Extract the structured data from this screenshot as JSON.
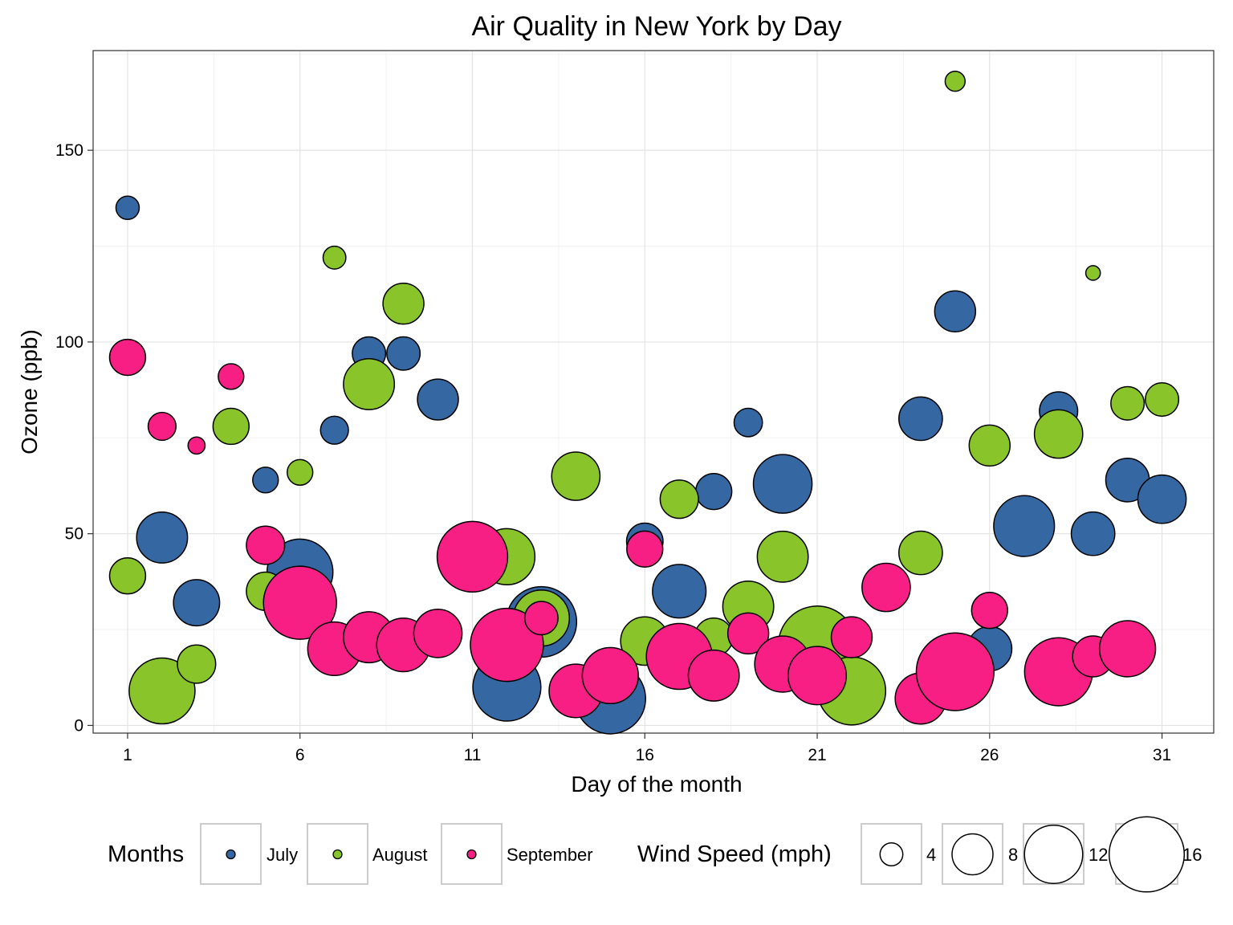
{
  "chart_data": {
    "type": "scatter",
    "title": "Air Quality in New York by Day",
    "xlabel": "Day of the month",
    "ylabel": "Ozone (ppb)",
    "xlim": [
      0,
      32.5
    ],
    "ylim": [
      -2,
      176
    ],
    "x_ticks": [
      1,
      6,
      11,
      16,
      21,
      26,
      31
    ],
    "y_ticks": [
      0,
      50,
      100,
      150
    ],
    "grid": true,
    "size_variable": "Wind Speed (mph)",
    "series": [
      {
        "name": "July",
        "color": "#3567A3",
        "points": [
          {
            "day": 1,
            "ozone": 135,
            "wind": 4.1
          },
          {
            "day": 2,
            "ozone": 49,
            "wind": 10.3
          },
          {
            "day": 3,
            "ozone": 32,
            "wind": 9.2
          },
          {
            "day": 5,
            "ozone": 64,
            "wind": 4.6
          },
          {
            "day": 6,
            "ozone": 40,
            "wind": 13.8
          },
          {
            "day": 7,
            "ozone": 77,
            "wind": 5.1
          },
          {
            "day": 8,
            "ozone": 97,
            "wind": 6.3
          },
          {
            "day": 9,
            "ozone": 97,
            "wind": 6.3
          },
          {
            "day": 10,
            "ozone": 85,
            "wind": 8.0
          },
          {
            "day": 12,
            "ozone": 10,
            "wind": 14.3
          },
          {
            "day": 13,
            "ozone": 27,
            "wind": 14.9
          },
          {
            "day": 15,
            "ozone": 7,
            "wind": 14.9
          },
          {
            "day": 16,
            "ozone": 48,
            "wind": 7.0
          },
          {
            "day": 17,
            "ozone": 35,
            "wind": 10.9
          },
          {
            "day": 18,
            "ozone": 61,
            "wind": 6.9
          },
          {
            "day": 19,
            "ozone": 79,
            "wind": 5.2
          },
          {
            "day": 20,
            "ozone": 63,
            "wind": 12.1
          },
          {
            "day": 24,
            "ozone": 80,
            "wind": 8.6
          },
          {
            "day": 25,
            "ozone": 108,
            "wind": 8.0
          },
          {
            "day": 26,
            "ozone": 20,
            "wind": 8.8
          },
          {
            "day": 27,
            "ozone": 52,
            "wind": 12.6
          },
          {
            "day": 28,
            "ozone": 82,
            "wind": 7.4
          },
          {
            "day": 29,
            "ozone": 50,
            "wind": 8.6
          },
          {
            "day": 30,
            "ozone": 64,
            "wind": 8.6
          },
          {
            "day": 31,
            "ozone": 59,
            "wind": 9.7
          }
        ]
      },
      {
        "name": "August",
        "color": "#88C42A",
        "points": [
          {
            "day": 1,
            "ozone": 39,
            "wind": 6.9
          },
          {
            "day": 2,
            "ozone": 9,
            "wind": 13.8
          },
          {
            "day": 3,
            "ozone": 16,
            "wind": 7.4
          },
          {
            "day": 4,
            "ozone": 78,
            "wind": 6.9
          },
          {
            "day": 5,
            "ozone": 35,
            "wind": 7.4
          },
          {
            "day": 6,
            "ozone": 66,
            "wind": 4.6
          },
          {
            "day": 7,
            "ozone": 122,
            "wind": 4.0
          },
          {
            "day": 8,
            "ozone": 89,
            "wind": 10.3
          },
          {
            "day": 9,
            "ozone": 110,
            "wind": 8.0
          },
          {
            "day": 12,
            "ozone": 44,
            "wind": 11.5
          },
          {
            "day": 13,
            "ozone": 28,
            "wind": 11.5
          },
          {
            "day": 14,
            "ozone": 65,
            "wind": 9.7
          },
          {
            "day": 16,
            "ozone": 22,
            "wind": 9.7
          },
          {
            "day": 17,
            "ozone": 59,
            "wind": 7.4
          },
          {
            "day": 18,
            "ozone": 23,
            "wind": 7.4
          },
          {
            "day": 19,
            "ozone": 31,
            "wind": 10.3
          },
          {
            "day": 20,
            "ozone": 44,
            "wind": 10.3
          },
          {
            "day": 21,
            "ozone": 21,
            "wind": 16.6
          },
          {
            "day": 22,
            "ozone": 9,
            "wind": 14.3
          },
          {
            "day": 24,
            "ozone": 45,
            "wind": 8.6
          },
          {
            "day": 25,
            "ozone": 168,
            "wind": 3.4
          },
          {
            "day": 26,
            "ozone": 73,
            "wind": 8.0
          },
          {
            "day": 28,
            "ozone": 76,
            "wind": 9.7
          },
          {
            "day": 29,
            "ozone": 118,
            "wind": 2.3
          },
          {
            "day": 30,
            "ozone": 84,
            "wind": 6.3
          },
          {
            "day": 31,
            "ozone": 85,
            "wind": 6.3
          }
        ]
      },
      {
        "name": "September",
        "color": "#F71F83",
        "points": [
          {
            "day": 1,
            "ozone": 96,
            "wind": 6.9
          },
          {
            "day": 2,
            "ozone": 78,
            "wind": 5.1
          },
          {
            "day": 3,
            "ozone": 73,
            "wind": 2.8
          },
          {
            "day": 4,
            "ozone": 91,
            "wind": 4.6
          },
          {
            "day": 5,
            "ozone": 47,
            "wind": 7.4
          },
          {
            "day": 6,
            "ozone": 32,
            "wind": 15.5
          },
          {
            "day": 7,
            "ozone": 20,
            "wind": 10.9
          },
          {
            "day": 8,
            "ozone": 23,
            "wind": 10.3
          },
          {
            "day": 9,
            "ozone": 21,
            "wind": 10.9
          },
          {
            "day": 10,
            "ozone": 24,
            "wind": 9.7
          },
          {
            "day": 11,
            "ozone": 44,
            "wind": 14.9
          },
          {
            "day": 12,
            "ozone": 21,
            "wind": 15.5
          },
          {
            "day": 13,
            "ozone": 28,
            "wind": 6.3
          },
          {
            "day": 14,
            "ozone": 9,
            "wind": 10.9
          },
          {
            "day": 15,
            "ozone": 13,
            "wind": 11.5
          },
          {
            "day": 16,
            "ozone": 46,
            "wind": 6.9
          },
          {
            "day": 17,
            "ozone": 18,
            "wind": 13.8
          },
          {
            "day": 18,
            "ozone": 13,
            "wind": 10.3
          },
          {
            "day": 19,
            "ozone": 24,
            "wind": 8.0
          },
          {
            "day": 20,
            "ozone": 16,
            "wind": 11.5
          },
          {
            "day": 21,
            "ozone": 13,
            "wind": 12.0
          },
          {
            "day": 22,
            "ozone": 23,
            "wind": 8.0
          },
          {
            "day": 23,
            "ozone": 36,
            "wind": 9.7
          },
          {
            "day": 24,
            "ozone": 7,
            "wind": 10.3
          },
          {
            "day": 25,
            "ozone": 14,
            "wind": 16.6
          },
          {
            "day": 26,
            "ozone": 30,
            "wind": 6.9
          },
          {
            "day": 28,
            "ozone": 14,
            "wind": 14.3
          },
          {
            "day": 29,
            "ozone": 18,
            "wind": 8.0
          },
          {
            "day": 30,
            "ozone": 20,
            "wind": 11.5
          }
        ]
      }
    ],
    "legend": {
      "placement": "bottom",
      "color_title": "Months",
      "color_entries": [
        "July",
        "August",
        "September"
      ],
      "size_title": "Wind Speed (mph)",
      "size_entries": [
        4,
        8,
        12,
        16
      ]
    }
  }
}
